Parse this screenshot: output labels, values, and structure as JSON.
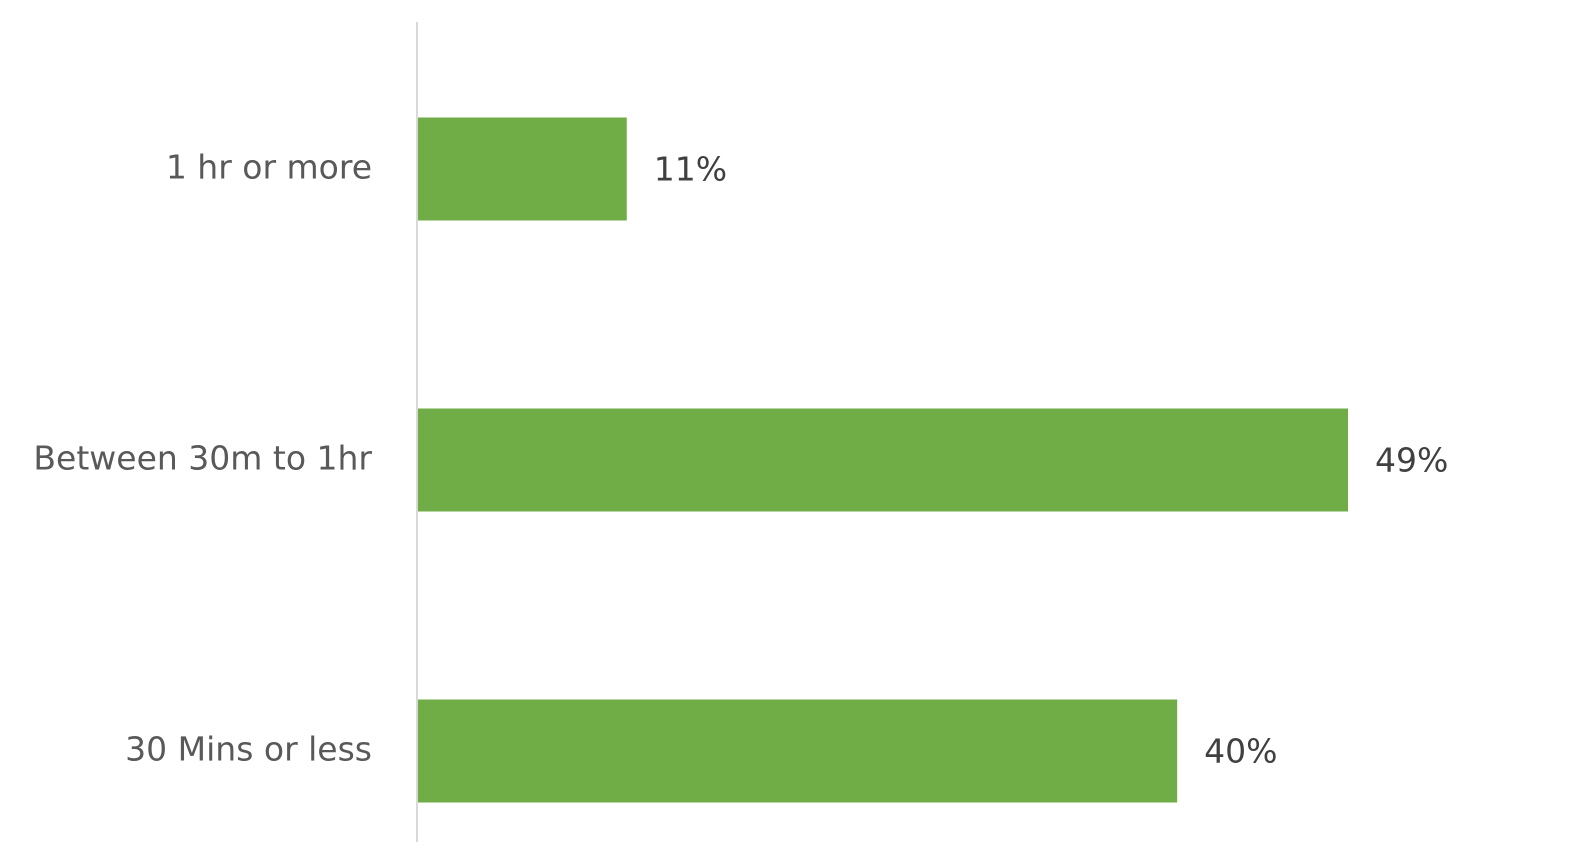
{
  "chart_data": {
    "type": "bar",
    "orientation": "horizontal",
    "categories": [
      "1 hr or more",
      "Between 30m to 1hr",
      "30 Mins or less"
    ],
    "values": [
      11,
      49,
      40
    ],
    "value_labels": [
      "11%",
      "49%",
      "40%"
    ],
    "color": "#70ad47"
  }
}
